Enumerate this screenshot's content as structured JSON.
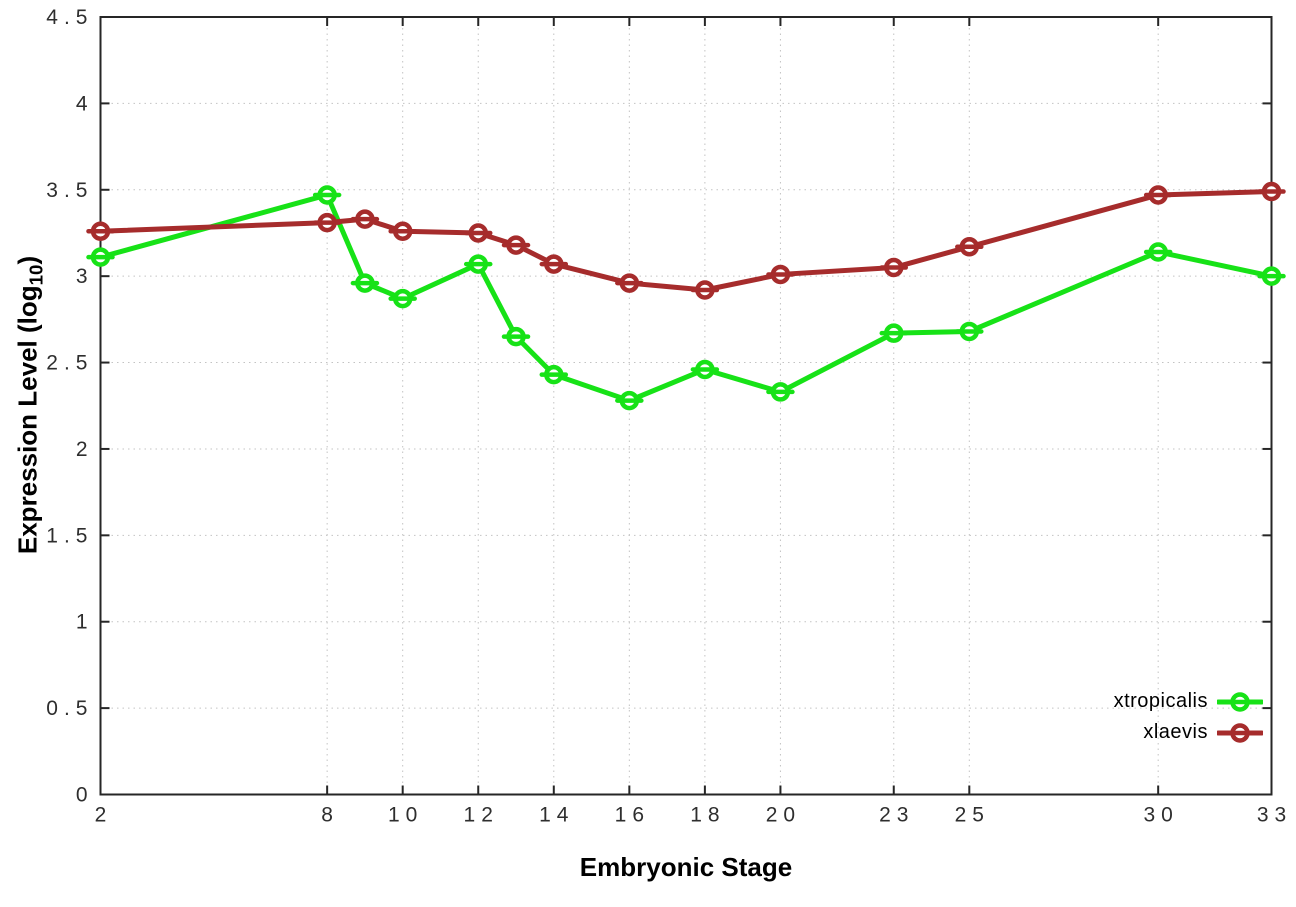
{
  "chart_data": {
    "type": "line",
    "title": "",
    "xlabel": "Embryonic Stage",
    "ylabel": {
      "pre": "Expression Level (log",
      "sub": "10",
      "post": ")"
    },
    "xlim": [
      2,
      33
    ],
    "ylim": [
      0,
      4.5
    ],
    "grid": true,
    "legend_position": "inside-bottom-right",
    "marker_style": "open-circle-with-horizontal-errorbar-cap",
    "xticks": {
      "values": [
        2,
        8,
        10,
        12,
        14,
        16,
        18,
        20,
        23,
        25,
        30,
        33
      ],
      "labels": [
        "2",
        "8",
        "10",
        "12",
        "14",
        "16",
        "18",
        "20",
        "23",
        "25",
        "30",
        "33"
      ]
    },
    "yticks": {
      "values": [
        0,
        0.5,
        1,
        1.5,
        2,
        2.5,
        3,
        3.5,
        4,
        4.5
      ],
      "labels": [
        "0",
        "0.5",
        "1",
        "1.5",
        "2",
        "2.5",
        "3",
        "3.5",
        "4",
        "4.5"
      ]
    },
    "x": [
      2,
      8,
      9,
      10,
      12,
      13,
      14,
      16,
      18,
      20,
      23,
      25,
      30,
      33
    ],
    "series": [
      {
        "name": "xtropicalis",
        "color": "#17e217",
        "values": [
          3.11,
          3.47,
          2.96,
          2.87,
          3.07,
          2.65,
          2.43,
          2.28,
          2.46,
          2.33,
          2.67,
          2.68,
          3.14,
          3.0
        ]
      },
      {
        "name": "xlaevis",
        "color": "#a62c2c",
        "values": [
          3.26,
          3.31,
          3.33,
          3.26,
          3.25,
          3.18,
          3.07,
          2.96,
          2.92,
          3.01,
          3.05,
          3.17,
          3.47,
          3.49
        ]
      }
    ]
  }
}
